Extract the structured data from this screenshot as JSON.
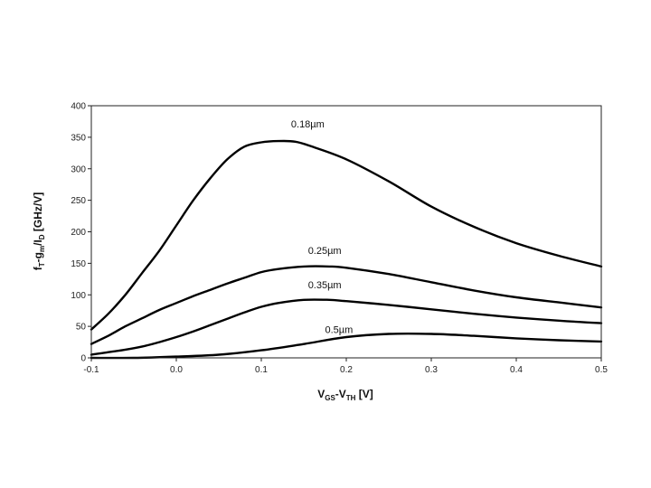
{
  "chart_data": {
    "type": "line",
    "xlabel_parts": {
      "v1": "V",
      "gs": "GS",
      "mid": "-V",
      "th": "TH",
      "unit": " [V]"
    },
    "ylabel_parts": {
      "f": "f",
      "t": "T",
      "dash": "-g",
      "m": "m",
      "sep": "/I",
      "d": "D",
      "unit": " [GHz/V]"
    },
    "xlim": [
      -0.1,
      0.5
    ],
    "ylim": [
      0,
      400
    ],
    "xticks": [
      "-0.1",
      "0.0",
      "0.1",
      "0.2",
      "0.3",
      "0.4",
      "0.5"
    ],
    "yticks": [
      "0",
      "50",
      "100",
      "150",
      "200",
      "250",
      "300",
      "350",
      "400"
    ],
    "grid": false,
    "series": [
      {
        "name": "0.18µm",
        "x": [
          -0.1,
          -0.08,
          -0.06,
          -0.04,
          -0.02,
          0.0,
          0.02,
          0.04,
          0.06,
          0.08,
          0.1,
          0.12,
          0.14,
          0.16,
          0.2,
          0.25,
          0.3,
          0.35,
          0.4,
          0.45,
          0.5
        ],
        "y": [
          45,
          70,
          100,
          135,
          170,
          210,
          250,
          285,
          315,
          335,
          342,
          344,
          343,
          335,
          315,
          280,
          240,
          208,
          182,
          162,
          145
        ]
      },
      {
        "name": "0.25µm",
        "x": [
          -0.1,
          -0.08,
          -0.06,
          -0.04,
          -0.02,
          0.0,
          0.02,
          0.04,
          0.06,
          0.08,
          0.1,
          0.12,
          0.15,
          0.18,
          0.2,
          0.25,
          0.3,
          0.35,
          0.4,
          0.45,
          0.5
        ],
        "y": [
          22,
          35,
          50,
          63,
          76,
          87,
          98,
          108,
          118,
          127,
          136,
          141,
          145,
          145,
          143,
          133,
          120,
          107,
          96,
          88,
          80
        ]
      },
      {
        "name": "0.35µm",
        "x": [
          -0.1,
          -0.08,
          -0.06,
          -0.04,
          -0.02,
          0.0,
          0.02,
          0.04,
          0.06,
          0.08,
          0.1,
          0.12,
          0.15,
          0.18,
          0.2,
          0.25,
          0.3,
          0.35,
          0.4,
          0.45,
          0.5
        ],
        "y": [
          5,
          9,
          13,
          18,
          25,
          33,
          42,
          52,
          62,
          72,
          81,
          87,
          92,
          92,
          90,
          84,
          77,
          70,
          64,
          59,
          55
        ]
      },
      {
        "name": "0.5µm",
        "x": [
          -0.1,
          -0.05,
          0.0,
          0.05,
          0.1,
          0.15,
          0.2,
          0.25,
          0.3,
          0.35,
          0.4,
          0.45,
          0.5
        ],
        "y": [
          0,
          0,
          2,
          5,
          12,
          22,
          33,
          38,
          38,
          35,
          31,
          28,
          26
        ]
      }
    ]
  }
}
